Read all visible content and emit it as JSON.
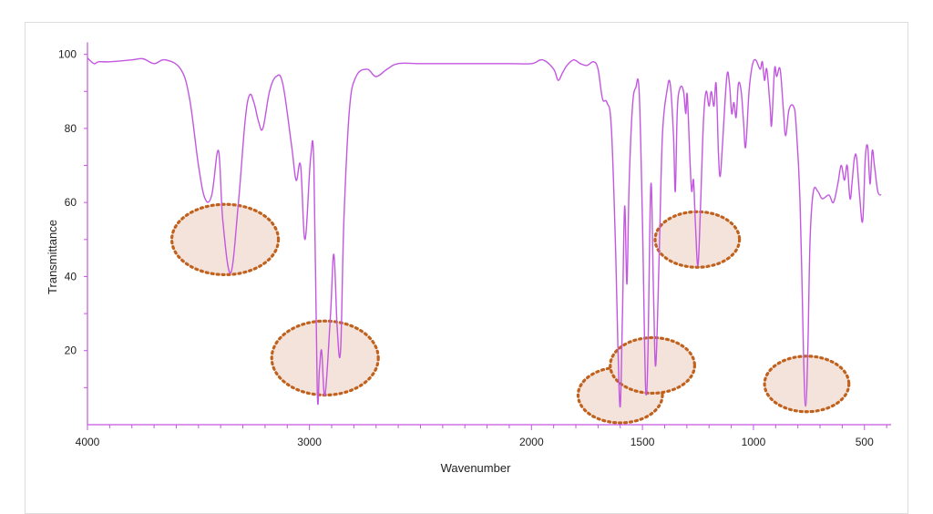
{
  "chart_data": {
    "type": "line",
    "title": "",
    "xlabel": "Wavenumber",
    "ylabel": "Transmittance",
    "xlim": [
      4000,
      380
    ],
    "ylim": [
      0,
      102
    ],
    "x_ticks": [
      4000,
      3000,
      2000,
      1500,
      1000,
      500
    ],
    "y_ticks": [
      20,
      40,
      60,
      80,
      100
    ],
    "grid": false,
    "line_color": "#c257e0",
    "highlight_color": "#c0621e",
    "highlight_fill": "#f3e3db",
    "series": [
      {
        "points": [
          [
            4000,
            99
          ],
          [
            3970,
            97.5
          ],
          [
            3950,
            98
          ],
          [
            3900,
            98
          ],
          [
            3800,
            98.5
          ],
          [
            3750,
            98.8
          ],
          [
            3700,
            97.5
          ],
          [
            3650,
            98.5
          ],
          [
            3580,
            96
          ],
          [
            3540,
            88
          ],
          [
            3500,
            70
          ],
          [
            3470,
            61
          ],
          [
            3440,
            62
          ],
          [
            3410,
            74
          ],
          [
            3390,
            55
          ],
          [
            3355,
            41
          ],
          [
            3320,
            60
          ],
          [
            3290,
            82
          ],
          [
            3270,
            89
          ],
          [
            3250,
            87
          ],
          [
            3230,
            82
          ],
          [
            3210,
            80
          ],
          [
            3180,
            90
          ],
          [
            3150,
            94
          ],
          [
            3120,
            92
          ],
          [
            3080,
            75
          ],
          [
            3060,
            66
          ],
          [
            3040,
            70
          ],
          [
            3020,
            50
          ],
          [
            2995,
            72
          ],
          [
            2980,
            70
          ],
          [
            2965,
            9
          ],
          [
            2955,
            15
          ],
          [
            2945,
            20
          ],
          [
            2930,
            8
          ],
          [
            2905,
            30
          ],
          [
            2890,
            46
          ],
          [
            2875,
            26
          ],
          [
            2860,
            20
          ],
          [
            2845,
            55
          ],
          [
            2820,
            85
          ],
          [
            2790,
            94
          ],
          [
            2740,
            96
          ],
          [
            2700,
            94
          ],
          [
            2650,
            96
          ],
          [
            2600,
            97.5
          ],
          [
            2500,
            97.5
          ],
          [
            2400,
            97.5
          ],
          [
            2300,
            97.5
          ],
          [
            2200,
            97.5
          ],
          [
            2100,
            97.5
          ],
          [
            2000,
            97.5
          ],
          [
            1950,
            98.5
          ],
          [
            1900,
            96
          ],
          [
            1880,
            93
          ],
          [
            1860,
            95
          ],
          [
            1840,
            97
          ],
          [
            1810,
            98.5
          ],
          [
            1780,
            97.5
          ],
          [
            1750,
            97
          ],
          [
            1720,
            98
          ],
          [
            1700,
            96
          ],
          [
            1680,
            88
          ],
          [
            1660,
            87
          ],
          [
            1640,
            80
          ],
          [
            1620,
            45
          ],
          [
            1610,
            20
          ],
          [
            1600,
            5
          ],
          [
            1590,
            30
          ],
          [
            1580,
            59
          ],
          [
            1570,
            38
          ],
          [
            1560,
            65
          ],
          [
            1545,
            86
          ],
          [
            1530,
            91
          ],
          [
            1515,
            90
          ],
          [
            1500,
            55
          ],
          [
            1490,
            20
          ],
          [
            1483,
            8
          ],
          [
            1475,
            20
          ],
          [
            1462,
            65
          ],
          [
            1450,
            35
          ],
          [
            1440,
            16
          ],
          [
            1425,
            45
          ],
          [
            1410,
            78
          ],
          [
            1390,
            90
          ],
          [
            1375,
            92
          ],
          [
            1360,
            78
          ],
          [
            1352,
            63
          ],
          [
            1343,
            85
          ],
          [
            1330,
            91
          ],
          [
            1315,
            90
          ],
          [
            1305,
            84
          ],
          [
            1298,
            89
          ],
          [
            1285,
            70
          ],
          [
            1278,
            63
          ],
          [
            1270,
            66
          ],
          [
            1262,
            55
          ],
          [
            1250,
            43
          ],
          [
            1238,
            60
          ],
          [
            1225,
            82
          ],
          [
            1213,
            90
          ],
          [
            1200,
            86
          ],
          [
            1190,
            90
          ],
          [
            1178,
            86
          ],
          [
            1168,
            92
          ],
          [
            1158,
            74
          ],
          [
            1150,
            67
          ],
          [
            1140,
            75
          ],
          [
            1120,
            94
          ],
          [
            1108,
            92
          ],
          [
            1098,
            84
          ],
          [
            1088,
            87
          ],
          [
            1078,
            83
          ],
          [
            1068,
            92
          ],
          [
            1055,
            90
          ],
          [
            1045,
            82
          ],
          [
            1035,
            75
          ],
          [
            1020,
            90
          ],
          [
            1005,
            97
          ],
          [
            990,
            98.5
          ],
          [
            970,
            96
          ],
          [
            960,
            98
          ],
          [
            950,
            93
          ],
          [
            940,
            96
          ],
          [
            925,
            86
          ],
          [
            918,
            81
          ],
          [
            905,
            96
          ],
          [
            895,
            94
          ],
          [
            880,
            96
          ],
          [
            865,
            85
          ],
          [
            855,
            78
          ],
          [
            840,
            85
          ],
          [
            820,
            86
          ],
          [
            808,
            81
          ],
          [
            790,
            60
          ],
          [
            775,
            20
          ],
          [
            765,
            5
          ],
          [
            755,
            20
          ],
          [
            745,
            50
          ],
          [
            730,
            63
          ],
          [
            710,
            63
          ],
          [
            690,
            61
          ],
          [
            660,
            62
          ],
          [
            640,
            60
          ],
          [
            620,
            65
          ],
          [
            605,
            70
          ],
          [
            590,
            66
          ],
          [
            578,
            70
          ],
          [
            565,
            61
          ],
          [
            555,
            66
          ],
          [
            545,
            72
          ],
          [
            535,
            72
          ],
          [
            522,
            62
          ],
          [
            508,
            55
          ],
          [
            496,
            72
          ],
          [
            485,
            75
          ],
          [
            475,
            65
          ],
          [
            465,
            74
          ],
          [
            455,
            70
          ],
          [
            440,
            63
          ],
          [
            425,
            62
          ]
        ]
      }
    ],
    "highlight_circles": [
      {
        "x": 3380,
        "y": 50,
        "rx": 240,
        "ry": 9.5
      },
      {
        "x": 2930,
        "y": 18,
        "rx": 240,
        "ry": 10
      },
      {
        "x": 1600,
        "y": 8,
        "rx": 190,
        "ry": 7.5
      },
      {
        "x": 1455,
        "y": 16,
        "rx": 190,
        "ry": 7.5
      },
      {
        "x": 1253,
        "y": 50,
        "rx": 190,
        "ry": 7.5
      },
      {
        "x": 760,
        "y": 11,
        "rx": 190,
        "ry": 7.5
      }
    ]
  }
}
